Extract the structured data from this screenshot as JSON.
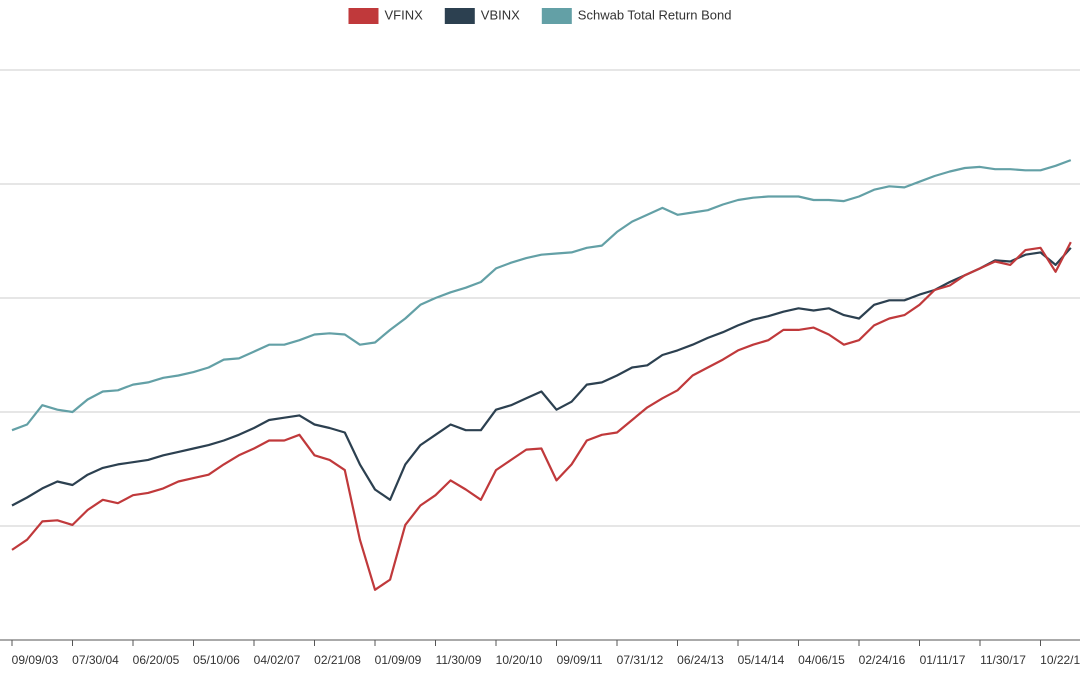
{
  "chart_data": {
    "type": "line",
    "categories": [
      "09/09/03",
      null,
      null,
      null,
      "07/30/04",
      null,
      null,
      null,
      "06/20/05",
      null,
      null,
      null,
      "05/10/06",
      null,
      null,
      null,
      "04/02/07",
      null,
      null,
      null,
      "02/21/08",
      null,
      null,
      null,
      "01/09/09",
      null,
      null,
      null,
      "11/30/09",
      null,
      null,
      null,
      "10/20/10",
      null,
      null,
      null,
      "09/09/11",
      null,
      null,
      null,
      "07/31/12",
      null,
      null,
      null,
      "06/24/13",
      null,
      null,
      null,
      "05/14/14",
      null,
      null,
      null,
      "04/06/15",
      null,
      null,
      null,
      "02/24/16",
      null,
      null,
      null,
      "01/11/17",
      null,
      null,
      null,
      "11/30/17",
      null,
      null,
      null,
      "10/22/18",
      null,
      null
    ],
    "series": [
      {
        "name": "VFINX",
        "color": "#c0393b",
        "values": [
          0.79,
          0.88,
          1.04,
          1.05,
          1.01,
          1.14,
          1.23,
          1.2,
          1.27,
          1.29,
          1.33,
          1.39,
          1.42,
          1.45,
          1.54,
          1.62,
          1.68,
          1.75,
          1.75,
          1.8,
          1.62,
          1.58,
          1.49,
          0.88,
          0.44,
          0.53,
          1.01,
          1.18,
          1.27,
          1.4,
          1.32,
          1.23,
          1.49,
          1.58,
          1.67,
          1.68,
          1.4,
          1.54,
          1.75,
          1.8,
          1.82,
          1.93,
          2.04,
          2.12,
          2.19,
          2.32,
          2.39,
          2.46,
          2.54,
          2.59,
          2.63,
          2.72,
          2.72,
          2.74,
          2.68,
          2.59,
          2.63,
          2.76,
          2.82,
          2.85,
          2.94,
          3.07,
          3.11,
          3.2,
          3.26,
          3.32,
          3.29,
          3.42,
          3.44,
          3.23,
          3.49
        ]
      },
      {
        "name": "VBINX",
        "color": "#2c4050",
        "values": [
          1.18,
          1.25,
          1.33,
          1.39,
          1.36,
          1.45,
          1.51,
          1.54,
          1.56,
          1.58,
          1.62,
          1.65,
          1.68,
          1.71,
          1.75,
          1.8,
          1.86,
          1.93,
          1.95,
          1.97,
          1.89,
          1.86,
          1.82,
          1.54,
          1.32,
          1.23,
          1.54,
          1.71,
          1.8,
          1.89,
          1.84,
          1.84,
          2.02,
          2.06,
          2.12,
          2.18,
          2.02,
          2.09,
          2.24,
          2.26,
          2.32,
          2.39,
          2.41,
          2.5,
          2.54,
          2.59,
          2.65,
          2.7,
          2.76,
          2.81,
          2.84,
          2.88,
          2.91,
          2.89,
          2.91,
          2.85,
          2.82,
          2.94,
          2.98,
          2.98,
          3.03,
          3.07,
          3.14,
          3.2,
          3.26,
          3.33,
          3.32,
          3.38,
          3.4,
          3.29,
          3.44
        ]
      },
      {
        "name": "Schwab Total Return Bond",
        "color": "#63a0a6",
        "values": [
          1.84,
          1.89,
          2.06,
          2.02,
          2.0,
          2.11,
          2.18,
          2.19,
          2.24,
          2.26,
          2.3,
          2.32,
          2.35,
          2.39,
          2.46,
          2.47,
          2.53,
          2.59,
          2.59,
          2.63,
          2.68,
          2.69,
          2.68,
          2.59,
          2.61,
          2.72,
          2.82,
          2.94,
          3.0,
          3.05,
          3.09,
          3.14,
          3.26,
          3.31,
          3.35,
          3.38,
          3.39,
          3.4,
          3.44,
          3.46,
          3.58,
          3.67,
          3.73,
          3.79,
          3.73,
          3.75,
          3.77,
          3.82,
          3.86,
          3.88,
          3.89,
          3.89,
          3.89,
          3.86,
          3.86,
          3.85,
          3.89,
          3.95,
          3.98,
          3.97,
          4.02,
          4.07,
          4.11,
          4.14,
          4.15,
          4.13,
          4.13,
          4.12,
          4.12,
          4.16,
          4.21
        ]
      }
    ],
    "ylim": [
      0,
      5
    ],
    "yticks": [
      0,
      1,
      2,
      3,
      4,
      5
    ],
    "grid": true
  }
}
